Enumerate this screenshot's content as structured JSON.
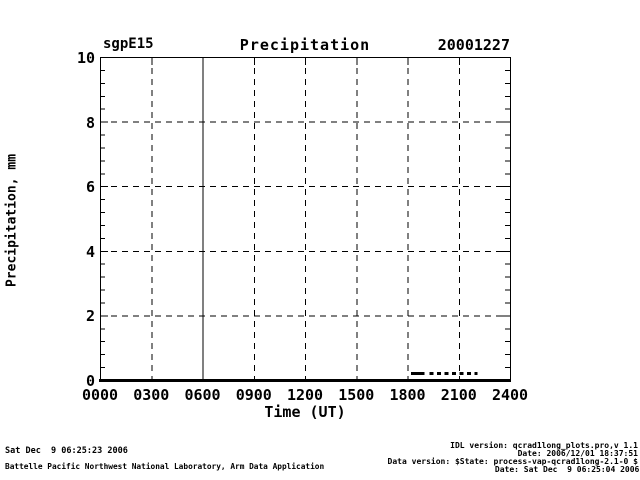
{
  "header": {
    "site": "sgpE15",
    "title": "Precipitation",
    "date": "20001227"
  },
  "chart_data": {
    "type": "line",
    "title": "Precipitation",
    "site": "sgpE15",
    "date_yyyymmdd": "20001227",
    "xlabel": "Time (UT)",
    "ylabel": "Precipitation, mm",
    "xlim": [
      0,
      24
    ],
    "ylim": [
      0,
      10
    ],
    "xticks": {
      "hours": [
        0,
        3,
        6,
        9,
        12,
        15,
        18,
        21,
        24
      ],
      "labels": [
        "0000",
        "0300",
        "0600",
        "0900",
        "1200",
        "1500",
        "1800",
        "2100",
        "2400"
      ]
    },
    "yticks": {
      "values": [
        0,
        2,
        4,
        6,
        8,
        10
      ],
      "labels": [
        "0",
        "2",
        "4",
        "6",
        "8",
        "10"
      ],
      "minor_step": 0.4
    },
    "grid": {
      "horizontal_dashed_at": [
        2,
        4,
        6,
        8
      ],
      "vertical_dashed_at": [
        3,
        9,
        12,
        15,
        18,
        21
      ],
      "vertical_solid_at": [
        6
      ]
    },
    "series": [
      {
        "name": "precipitation",
        "units": "mm",
        "value": 0.2,
        "segments": [
          {
            "from_hour": 18.2,
            "to_hour": 19.0,
            "style": "solid"
          },
          {
            "from_hour": 19.3,
            "to_hour": 22.1,
            "style": "dashed"
          }
        ]
      }
    ],
    "legend": "none",
    "colors": {
      "foreground": "#000000",
      "background": "#ffffff"
    }
  },
  "footer_left": {
    "timestamp": "Sat Dec  9 06:25:23 2006",
    "organization": "Battelle Pacific Northwest National Laboratory, Arm Data Application"
  },
  "footer_right": {
    "idl_version": "IDL version: qcrad1long_plots.pro,v 1.1",
    "idl_date": "Date: 2006/12/01 18:37:51",
    "data_version": "Data version: $State: process-vap-qcrad1long-2.1-0 $",
    "data_date": "Date: Sat Dec  9 06:25:04 2006 $"
  }
}
